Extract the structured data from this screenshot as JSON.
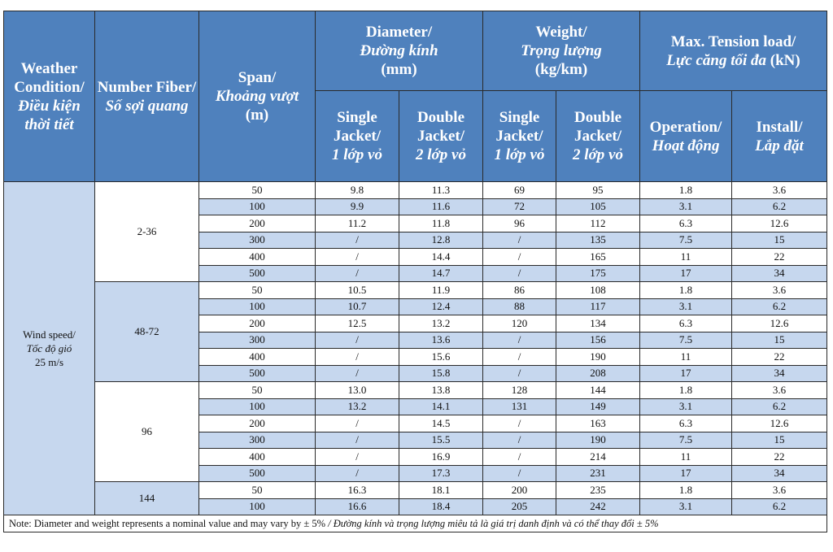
{
  "header": {
    "weather": "Weather Condition/",
    "weather_vi": "Điều kiện thời tiết",
    "fiber": "Number Fiber/",
    "fiber_vi": "Số sợi quang",
    "span": "Span/",
    "span_vi": "Khoảng vượt",
    "span_unit": "(m)",
    "diameter": "Diameter/",
    "diameter_vi": "Đường kính",
    "diameter_unit": "(mm)",
    "weight": "Weight/",
    "weight_vi": "Trọng lượng",
    "weight_unit": "(kg/km)",
    "tension": "Max. Tension load/",
    "tension_vi": "Lực căng tối đa",
    "tension_unit": "(kN)",
    "single": "Single Jacket/",
    "single_vi": "1 lớp vỏ",
    "double": "Double Jacket/",
    "double_vi": "2 lớp vỏ",
    "operation": "Operation/",
    "operation_vi": "Hoạt động",
    "install": "Install/",
    "install_vi": "Lắp đặt"
  },
  "condition": {
    "label": "Wind speed/",
    "label_vi": "Tốc độ gió",
    "value": "25 m/s"
  },
  "groups": [
    {
      "fiber": "2-36",
      "rows": [
        {
          "span": "50",
          "dia_single": "9.8",
          "dia_double": "11.3",
          "wt_single": "69",
          "wt_double": "95",
          "op": "1.8",
          "inst": "3.6"
        },
        {
          "span": "100",
          "dia_single": "9.9",
          "dia_double": "11.6",
          "wt_single": "72",
          "wt_double": "105",
          "op": "3.1",
          "inst": "6.2"
        },
        {
          "span": "200",
          "dia_single": "11.2",
          "dia_double": "11.8",
          "wt_single": "96",
          "wt_double": "112",
          "op": "6.3",
          "inst": "12.6"
        },
        {
          "span": "300",
          "dia_single": "/",
          "dia_double": "12.8",
          "wt_single": "/",
          "wt_double": "135",
          "op": "7.5",
          "inst": "15"
        },
        {
          "span": "400",
          "dia_single": "/",
          "dia_double": "14.4",
          "wt_single": "/",
          "wt_double": "165",
          "op": "11",
          "inst": "22"
        },
        {
          "span": "500",
          "dia_single": "/",
          "dia_double": "14.7",
          "wt_single": "/",
          "wt_double": "175",
          "op": "17",
          "inst": "34"
        }
      ]
    },
    {
      "fiber": "48-72",
      "rows": [
        {
          "span": "50",
          "dia_single": "10.5",
          "dia_double": "11.9",
          "wt_single": "86",
          "wt_double": "108",
          "op": "1.8",
          "inst": "3.6"
        },
        {
          "span": "100",
          "dia_single": "10.7",
          "dia_double": "12.4",
          "wt_single": "88",
          "wt_double": "117",
          "op": "3.1",
          "inst": "6.2"
        },
        {
          "span": "200",
          "dia_single": "12.5",
          "dia_double": "13.2",
          "wt_single": "120",
          "wt_double": "134",
          "op": "6.3",
          "inst": "12.6"
        },
        {
          "span": "300",
          "dia_single": "/",
          "dia_double": "13.6",
          "wt_single": "/",
          "wt_double": "156",
          "op": "7.5",
          "inst": "15"
        },
        {
          "span": "400",
          "dia_single": "/",
          "dia_double": "15.6",
          "wt_single": "/",
          "wt_double": "190",
          "op": "11",
          "inst": "22"
        },
        {
          "span": "500",
          "dia_single": "/",
          "dia_double": "15.8",
          "wt_single": "/",
          "wt_double": "208",
          "op": "17",
          "inst": "34"
        }
      ]
    },
    {
      "fiber": "96",
      "rows": [
        {
          "span": "50",
          "dia_single": "13.0",
          "dia_double": "13.8",
          "wt_single": "128",
          "wt_double": "144",
          "op": "1.8",
          "inst": "3.6"
        },
        {
          "span": "100",
          "dia_single": "13.2",
          "dia_double": "14.1",
          "wt_single": "131",
          "wt_double": "149",
          "op": "3.1",
          "inst": "6.2"
        },
        {
          "span": "200",
          "dia_single": "/",
          "dia_double": "14.5",
          "wt_single": "/",
          "wt_double": "163",
          "op": "6.3",
          "inst": "12.6"
        },
        {
          "span": "300",
          "dia_single": "/",
          "dia_double": "15.5",
          "wt_single": "/",
          "wt_double": "190",
          "op": "7.5",
          "inst": "15"
        },
        {
          "span": "400",
          "dia_single": "/",
          "dia_double": "16.9",
          "wt_single": "/",
          "wt_double": "214",
          "op": "11",
          "inst": "22"
        },
        {
          "span": "500",
          "dia_single": "/",
          "dia_double": "17.3",
          "wt_single": "/",
          "wt_double": "231",
          "op": "17",
          "inst": "34"
        }
      ]
    },
    {
      "fiber": "144",
      "rows": [
        {
          "span": "50",
          "dia_single": "16.3",
          "dia_double": "18.1",
          "wt_single": "200",
          "wt_double": "235",
          "op": "1.8",
          "inst": "3.6"
        },
        {
          "span": "100",
          "dia_single": "16.6",
          "dia_double": "18.4",
          "wt_single": "205",
          "wt_double": "242",
          "op": "3.1",
          "inst": "6.2"
        }
      ]
    }
  ],
  "note": "Note: Diameter and weight represents a nominal value and may vary by ± 5%",
  "note_vi": " / Đường kính và trọng lượng miêu tả là giá trị danh định và có thể thay đổi ± 5%",
  "colors": {
    "header_bg": "#4f81bd",
    "row_blue": "#c6d7ee",
    "row_white": "#ffffff"
  }
}
